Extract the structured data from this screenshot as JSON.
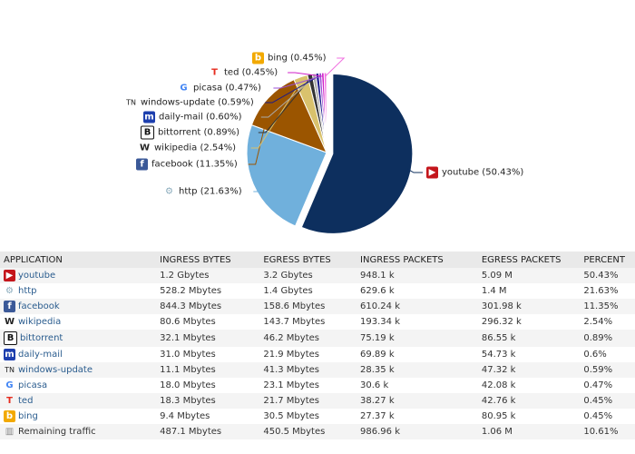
{
  "chart_data": {
    "type": "pie",
    "slices": [
      {
        "label": "youtube",
        "value": 50.43,
        "display": "youtube (50.43%)",
        "color": "#0d2f5e",
        "icon": "youtube-icon"
      },
      {
        "label": "http",
        "value": 21.63,
        "display": "http (21.63%)",
        "color": "#70b0dc",
        "icon": "gear-icon"
      },
      {
        "label": "facebook",
        "value": 11.35,
        "display": "facebook (11.35%)",
        "color": "#9b5500",
        "icon": "facebook-icon"
      },
      {
        "label": "wikipedia",
        "value": 2.54,
        "display": "wikipedia (2.54%)",
        "color": "#d9c26d",
        "icon": "wikipedia-icon"
      },
      {
        "label": "bittorrent",
        "value": 0.89,
        "display": "bittorrent (0.89%)",
        "color": "#333333",
        "icon": "bittorrent-icon"
      },
      {
        "label": "daily-mail",
        "value": 0.6,
        "display": "daily-mail (0.60%)",
        "color": "#aaaaaa",
        "icon": "daily-mail-icon"
      },
      {
        "label": "windows-update",
        "value": 0.59,
        "display": "windows-update (0.59%)",
        "color": "#1a1a8c",
        "icon": "windows-update-icon"
      },
      {
        "label": "picasa",
        "value": 0.47,
        "display": "picasa (0.47%)",
        "color": "#9b4fd6",
        "icon": "google-icon"
      },
      {
        "label": "ted",
        "value": 0.45,
        "display": "ted (0.45%)",
        "color": "#d020c8",
        "icon": "ted-icon"
      },
      {
        "label": "bing",
        "value": 0.45,
        "display": "bing (0.45%)",
        "color": "#f070e0",
        "icon": "bing-icon"
      }
    ]
  },
  "table": {
    "headers": [
      "APPLICATION",
      "INGRESS BYTES",
      "EGRESS BYTES",
      "INGRESS PACKETS",
      "EGRESS PACKETS",
      "PERCENT"
    ],
    "rows": [
      {
        "app": "youtube",
        "icon": "youtube-icon",
        "cells": [
          "1.2 Gbytes",
          "3.2 Gbytes",
          "948.1 k",
          "5.09 M",
          "50.43%"
        ]
      },
      {
        "app": "http",
        "icon": "gear-icon",
        "cells": [
          "528.2 Mbytes",
          "1.4 Gbytes",
          "629.6 k",
          "1.4 M",
          "21.63%"
        ]
      },
      {
        "app": "facebook",
        "icon": "facebook-icon",
        "cells": [
          "844.3 Mbytes",
          "158.6 Mbytes",
          "610.24 k",
          "301.98 k",
          "11.35%"
        ]
      },
      {
        "app": "wikipedia",
        "icon": "wikipedia-icon",
        "cells": [
          "80.6 Mbytes",
          "143.7 Mbytes",
          "193.34 k",
          "296.32 k",
          "2.54%"
        ]
      },
      {
        "app": "bittorrent",
        "icon": "bittorrent-icon",
        "cells": [
          "32.1 Mbytes",
          "46.2 Mbytes",
          "75.19 k",
          "86.55 k",
          "0.89%"
        ]
      },
      {
        "app": "daily-mail",
        "icon": "daily-mail-icon",
        "cells": [
          "31.0 Mbytes",
          "21.9 Mbytes",
          "69.89 k",
          "54.73 k",
          "0.6%"
        ]
      },
      {
        "app": "windows-update",
        "icon": "windows-update-icon",
        "cells": [
          "11.1 Mbytes",
          "41.3 Mbytes",
          "28.35 k",
          "47.32 k",
          "0.59%"
        ]
      },
      {
        "app": "picasa",
        "icon": "google-icon",
        "cells": [
          "18.0 Mbytes",
          "23.1 Mbytes",
          "30.6 k",
          "42.08 k",
          "0.47%"
        ]
      },
      {
        "app": "ted",
        "icon": "ted-icon",
        "cells": [
          "18.3 Mbytes",
          "21.7 Mbytes",
          "38.27 k",
          "42.76 k",
          "0.45%"
        ]
      },
      {
        "app": "bing",
        "icon": "bing-icon",
        "cells": [
          "9.4 Mbytes",
          "30.5 Mbytes",
          "27.37 k",
          "80.95 k",
          "0.45%"
        ]
      },
      {
        "app": "Remaining traffic",
        "icon": "bar-chart-icon",
        "cells": [
          "487.1 Mbytes",
          "450.5 Mbytes",
          "986.96 k",
          "1.06 M",
          "10.61%"
        ]
      }
    ]
  }
}
